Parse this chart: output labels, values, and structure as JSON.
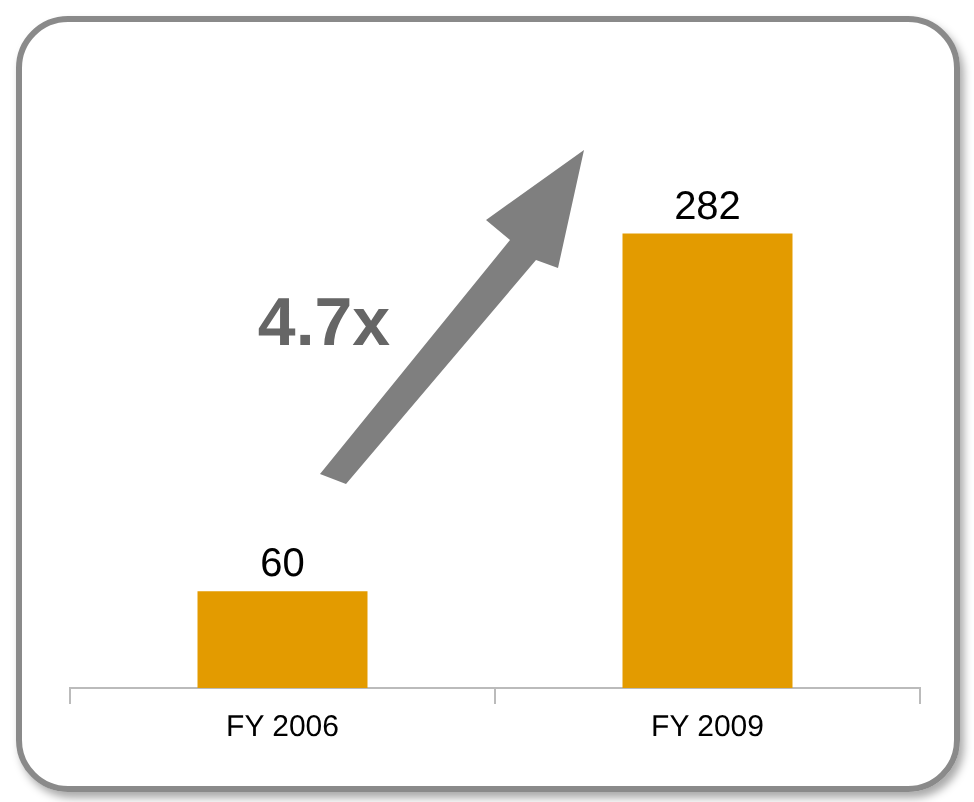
{
  "chart_data": {
    "type": "bar",
    "categories": [
      "FY 2006",
      "FY 2009"
    ],
    "values": [
      60,
      282
    ],
    "color": "#e39b00",
    "data_labels": true,
    "grid": false,
    "legend": false,
    "annotations": [
      "4.7x"
    ]
  }
}
